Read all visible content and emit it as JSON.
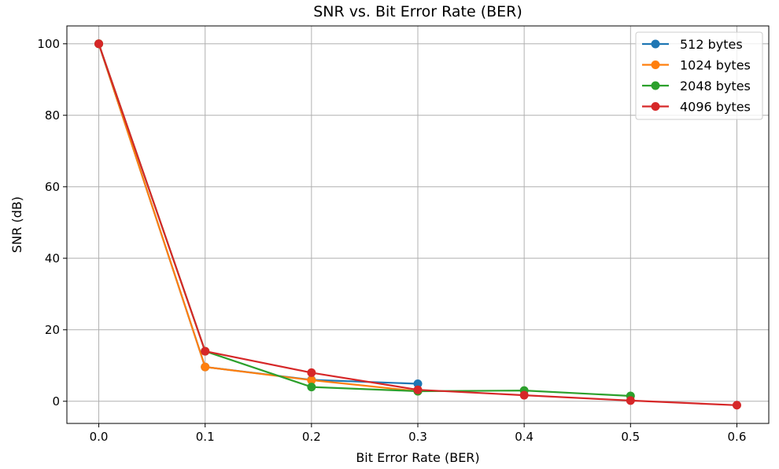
{
  "chart_data": {
    "type": "line",
    "title": "SNR vs. Bit Error Rate (BER)",
    "xlabel": "Bit Error Rate (BER)",
    "ylabel": "SNR (dB)",
    "xlim": [
      -0.03,
      0.63
    ],
    "ylim": [
      -6.2,
      105
    ],
    "xticks": [
      0.0,
      0.1,
      0.2,
      0.3,
      0.4,
      0.5,
      0.6
    ],
    "xtick_labels": [
      "0.0",
      "0.1",
      "0.2",
      "0.3",
      "0.4",
      "0.5",
      "0.6"
    ],
    "yticks": [
      0,
      20,
      40,
      60,
      80,
      100
    ],
    "ytick_labels": [
      "0",
      "20",
      "40",
      "60",
      "80",
      "100"
    ],
    "grid": true,
    "legend_position": "top-right",
    "series": [
      {
        "name": "512 bytes",
        "color": "#1f77b4",
        "x": [
          0.0,
          0.1,
          0.2,
          0.3
        ],
        "y": [
          100,
          9.6,
          6.0,
          4.9
        ]
      },
      {
        "name": "1024 bytes",
        "color": "#ff7f0e",
        "x": [
          0.0,
          0.1,
          0.2,
          0.3
        ],
        "y": [
          100,
          9.6,
          5.9,
          2.8
        ]
      },
      {
        "name": "2048 bytes",
        "color": "#2ca02c",
        "x": [
          0.0,
          0.1,
          0.2,
          0.3,
          0.4,
          0.5
        ],
        "y": [
          100,
          14.0,
          4.0,
          2.8,
          3.0,
          1.5
        ]
      },
      {
        "name": "4096 bytes",
        "color": "#d62728",
        "x": [
          0.0,
          0.1,
          0.2,
          0.3,
          0.4,
          0.5,
          0.6
        ],
        "y": [
          100,
          14.0,
          8.0,
          3.2,
          1.7,
          0.2,
          -1.1
        ]
      }
    ]
  }
}
